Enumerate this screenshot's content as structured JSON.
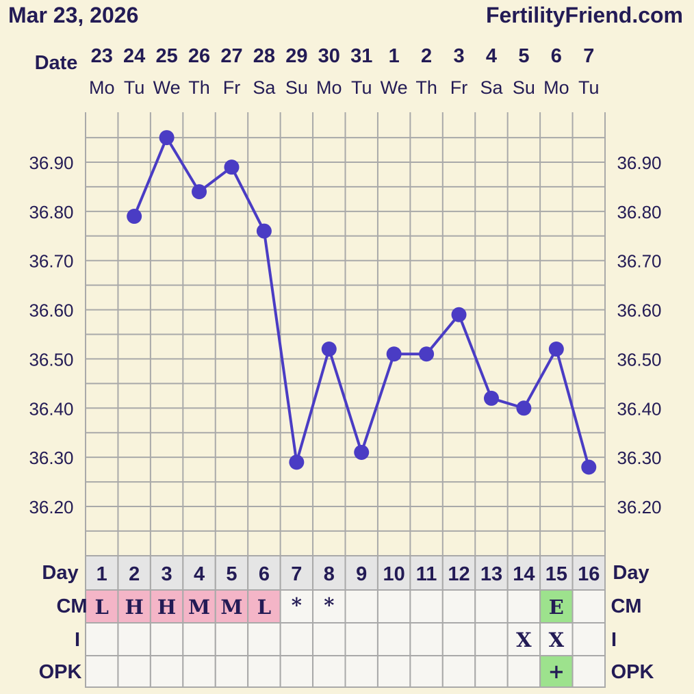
{
  "header": {
    "date": "Mar 23, 2026",
    "site": "FertilityFriend.com"
  },
  "labels": {
    "date": "Date",
    "day": "Day",
    "cm": "CM",
    "i": "I",
    "opk": "OPK"
  },
  "colors": {
    "background": "#f8f3dc",
    "line": "#4a3cc4",
    "grid": "#a9a9a9",
    "dayRow": "#e5e5e5",
    "cell": "#f7f6f2",
    "cmPink": "#f4b5c7",
    "green": "#9de28d",
    "text": "#231b55"
  },
  "chart_data": {
    "type": "line",
    "title": "",
    "xlabel": "Date",
    "ylabel": "",
    "ylim": [
      36.1,
      37.0
    ],
    "yticks": [
      "36.20",
      "36.30",
      "36.40",
      "36.50",
      "36.60",
      "36.70",
      "36.80",
      "36.90"
    ],
    "days": [
      {
        "dom": "23",
        "dow": "Mo",
        "cycle": "1",
        "temp": null,
        "cm": "L",
        "cmColor": "pink",
        "i": "",
        "opk": ""
      },
      {
        "dom": "24",
        "dow": "Tu",
        "cycle": "2",
        "temp": 36.79,
        "cm": "H",
        "cmColor": "pink",
        "i": "",
        "opk": ""
      },
      {
        "dom": "25",
        "dow": "We",
        "cycle": "3",
        "temp": 36.95,
        "cm": "H",
        "cmColor": "pink",
        "i": "",
        "opk": ""
      },
      {
        "dom": "26",
        "dow": "Th",
        "cycle": "4",
        "temp": 36.84,
        "cm": "M",
        "cmColor": "pink",
        "i": "",
        "opk": ""
      },
      {
        "dom": "27",
        "dow": "Fr",
        "cycle": "5",
        "temp": 36.89,
        "cm": "M",
        "cmColor": "pink",
        "i": "",
        "opk": ""
      },
      {
        "dom": "28",
        "dow": "Sa",
        "cycle": "6",
        "temp": 36.76,
        "cm": "L",
        "cmColor": "pink",
        "i": "",
        "opk": ""
      },
      {
        "dom": "29",
        "dow": "Su",
        "cycle": "7",
        "temp": 36.29,
        "cm": "*",
        "cmColor": "none",
        "i": "",
        "opk": ""
      },
      {
        "dom": "30",
        "dow": "Mo",
        "cycle": "8",
        "temp": 36.52,
        "cm": "*",
        "cmColor": "none",
        "i": "",
        "opk": ""
      },
      {
        "dom": "31",
        "dow": "Tu",
        "cycle": "9",
        "temp": 36.31,
        "cm": "",
        "cmColor": "none",
        "i": "",
        "opk": ""
      },
      {
        "dom": "1",
        "dow": "We",
        "cycle": "10",
        "temp": 36.51,
        "cm": "",
        "cmColor": "none",
        "i": "",
        "opk": ""
      },
      {
        "dom": "2",
        "dow": "Th",
        "cycle": "11",
        "temp": 36.51,
        "cm": "",
        "cmColor": "none",
        "i": "",
        "opk": ""
      },
      {
        "dom": "3",
        "dow": "Fr",
        "cycle": "12",
        "temp": 36.59,
        "cm": "",
        "cmColor": "none",
        "i": "",
        "opk": ""
      },
      {
        "dom": "4",
        "dow": "Sa",
        "cycle": "13",
        "temp": 36.42,
        "cm": "",
        "cmColor": "none",
        "i": "",
        "opk": ""
      },
      {
        "dom": "5",
        "dow": "Su",
        "cycle": "14",
        "temp": 36.4,
        "cm": "",
        "cmColor": "none",
        "i": "X",
        "opk": ""
      },
      {
        "dom": "6",
        "dow": "Mo",
        "cycle": "15",
        "temp": 36.52,
        "cm": "E",
        "cmColor": "green",
        "i": "X",
        "opk": "+"
      },
      {
        "dom": "7",
        "dow": "Tu",
        "cycle": "16",
        "temp": 36.28,
        "cm": "",
        "cmColor": "none",
        "i": "",
        "opk": ""
      }
    ]
  }
}
